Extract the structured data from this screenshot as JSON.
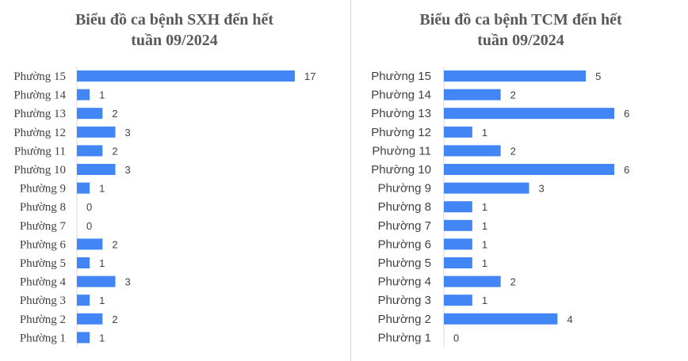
{
  "chart_data": [
    {
      "type": "bar",
      "orientation": "horizontal",
      "title_line1": "Biểu đồ ca bệnh SXH đến hết",
      "title_line2": "tuần 09/2024",
      "categories": [
        "Phường 15",
        "Phường 14",
        "Phường 13",
        "Phường 12",
        "Phường 11",
        "Phường 10",
        "Phường 9",
        "Phường 8",
        "Phường 7",
        "Phường 6",
        "Phường 5",
        "Phường 4",
        "Phường 3",
        "Phường 2",
        "Phường 1"
      ],
      "values": [
        17,
        1,
        2,
        3,
        2,
        3,
        1,
        0,
        0,
        2,
        1,
        3,
        1,
        2,
        1
      ],
      "xlim": [
        0,
        17
      ],
      "grid": false,
      "bar_color": "#4285f4"
    },
    {
      "type": "bar",
      "orientation": "horizontal",
      "title_line1": "Biểu đồ ca bệnh TCM đến hết",
      "title_line2": "tuần 09/2024",
      "categories": [
        "Phường 15",
        "Phường 14",
        "Phường 13",
        "Phường 12",
        "Phường 11",
        "Phường 10",
        "Phường 9",
        "Phường 8",
        "Phường 7",
        "Phường 6",
        "Phường 5",
        "Phường 4",
        "Phường 3",
        "Phường 2",
        "Phường 1"
      ],
      "values": [
        5,
        2,
        6,
        1,
        2,
        6,
        3,
        1,
        1,
        1,
        1,
        2,
        1,
        4,
        0
      ],
      "xlim": [
        0,
        6
      ],
      "grid": false,
      "bar_color": "#4285f4"
    }
  ]
}
